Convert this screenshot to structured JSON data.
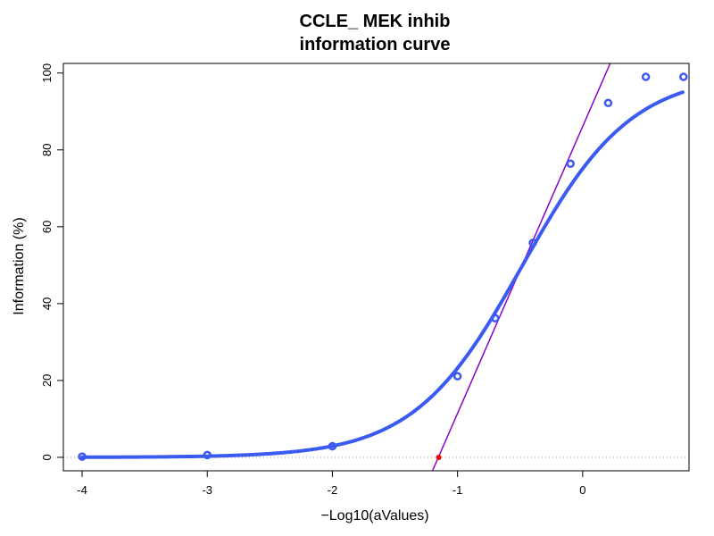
{
  "chart_data": {
    "type": "scatter",
    "title_line1": "CCLE_ MEK inhib",
    "title_line2": "information curve",
    "xlabel": "−Log10(aValues)",
    "ylabel": "Information (%)",
    "xlim": [
      -4.15,
      0.85
    ],
    "ylim": [
      -3.5,
      102.5
    ],
    "x_ticks": [
      -4,
      -3,
      -2,
      -1,
      0
    ],
    "y_ticks": [
      0,
      20,
      40,
      60,
      80,
      100
    ],
    "x_tick_labels": [
      "-4",
      "-3",
      "-2",
      "-1",
      "0"
    ],
    "y_tick_labels": [
      "0",
      "20",
      "40",
      "60",
      "80",
      "100"
    ],
    "grid": false,
    "series": [
      {
        "kind": "points",
        "color": "#3b5bf0",
        "x": [
          -4.0,
          -3.0,
          -2.0,
          -1.0,
          -0.699,
          -0.398,
          -0.097,
          0.204,
          0.505,
          0.806
        ],
        "y": [
          0.2,
          0.6,
          2.9,
          21.1,
          36.2,
          55.8,
          76.4,
          92.2,
          99.0,
          99.0
        ]
      },
      {
        "kind": "fitted-curve",
        "color": "#3b5bf0",
        "model": "logistic",
        "bottom": 0.0,
        "top": 100.0,
        "midpoint": -0.48,
        "slope": 2.3,
        "x_range": [
          -4.0,
          0.8
        ]
      },
      {
        "kind": "tangent-line",
        "color": "#8a00cc",
        "x": [
          -1.2,
          0.22
        ],
        "y": [
          -3.5,
          102.5
        ]
      },
      {
        "kind": "marker",
        "color": "#ee0000",
        "x": [
          -1.15
        ],
        "y": [
          0
        ]
      },
      {
        "kind": "baseline",
        "color": "#999999",
        "style": "dotted",
        "y": 0
      }
    ]
  }
}
